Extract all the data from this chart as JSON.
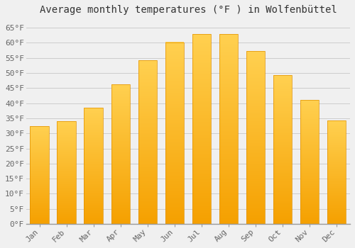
{
  "title": "Average monthly temperatures (°F ) in Wolfenbüttel",
  "months": [
    "Jan",
    "Feb",
    "Mar",
    "Apr",
    "May",
    "Jun",
    "Jul",
    "Aug",
    "Sep",
    "Oct",
    "Nov",
    "Dec"
  ],
  "values": [
    32.5,
    34.0,
    38.5,
    46.2,
    54.2,
    60.2,
    63.0,
    62.8,
    57.2,
    49.2,
    41.0,
    34.2
  ],
  "bar_color_bottom": "#F5A000",
  "bar_color_top": "#FFD050",
  "bar_edge_color": "#E09000",
  "ylim": [
    0,
    68
  ],
  "yticks": [
    0,
    5,
    10,
    15,
    20,
    25,
    30,
    35,
    40,
    45,
    50,
    55,
    60,
    65
  ],
  "ytick_labels": [
    "0°F",
    "5°F",
    "10°F",
    "15°F",
    "20°F",
    "25°F",
    "30°F",
    "35°F",
    "40°F",
    "45°F",
    "50°F",
    "55°F",
    "60°F",
    "65°F"
  ],
  "background_color": "#F0F0F0",
  "grid_color": "#CCCCCC",
  "title_fontsize": 10,
  "tick_fontsize": 8,
  "bar_width": 0.7
}
